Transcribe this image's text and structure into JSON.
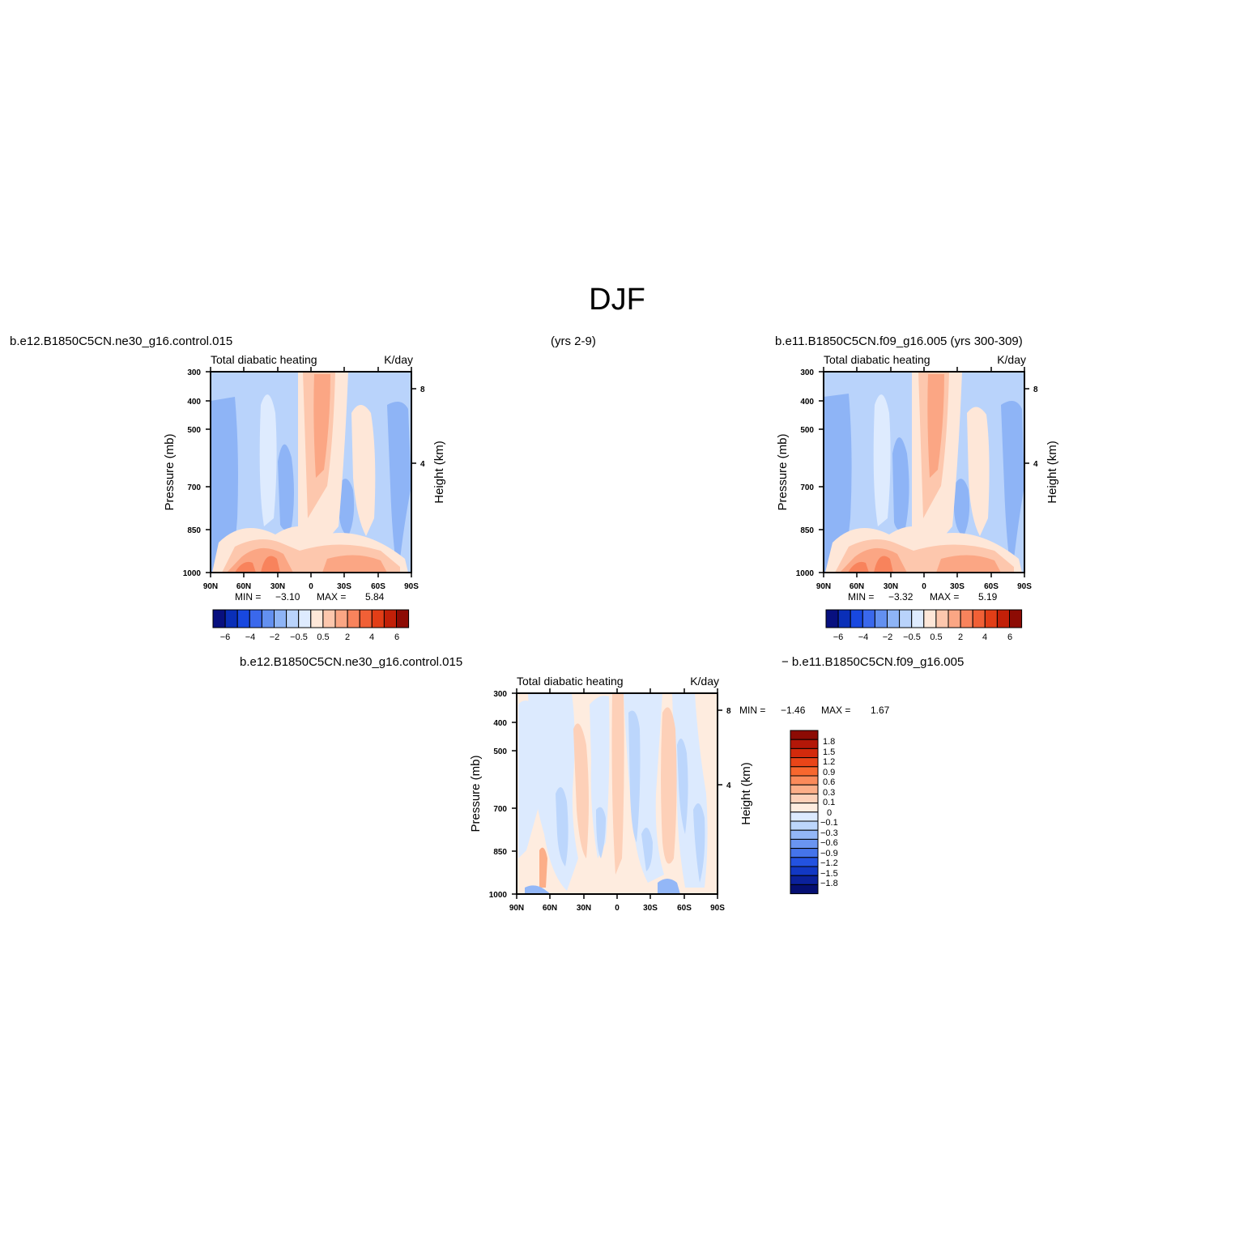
{
  "figure": {
    "title": "DJF",
    "case_left": "b.e12.B1850C5CN.ne30_g16.control.015",
    "case_left_years": "(yrs 2-9)",
    "case_right": "b.e11.B1850C5CN.f09_g16.005 (yrs 300-309)",
    "diff_left": "b.e12.B1850C5CN.ne30_g16.control.015",
    "diff_right": "− b.e11.B1850C5CN.f09_g16.005"
  },
  "colors": {
    "abs_scale": [
      "#08107f",
      "#0a2fb8",
      "#1848e0",
      "#3a68ec",
      "#6390f0",
      "#8eb4f6",
      "#b9d3fb",
      "#deebfe",
      "#fee7d8",
      "#fdc7ad",
      "#fba684",
      "#f8835c",
      "#f16036",
      "#e23e17",
      "#c22008",
      "#8d0b04"
    ],
    "diff_scale": [
      "#8d0b04",
      "#b31708",
      "#d32a0c",
      "#ea4518",
      "#f8672e",
      "#fb8a5a",
      "#fcae88",
      "#fdd0b8",
      "#feecdf",
      "#dceafe",
      "#bcd6fc",
      "#93b7f7",
      "#6a95f1",
      "#4574ea",
      "#2352e0",
      "#1238c4",
      "#0b219b",
      "#050f72"
    ]
  },
  "chart_data": [
    {
      "type": "heatmap",
      "panel": "top-left",
      "title": "Total diabatic heating",
      "units": "K/day",
      "ylabel": "Pressure (mb)",
      "ylabel_right": "Height (km)",
      "x_ticks": [
        "90N",
        "60N",
        "30N",
        "0",
        "30S",
        "60S",
        "90S"
      ],
      "y_ticks": [
        "300",
        "400",
        "500",
        "700",
        "850",
        "1000"
      ],
      "y_ticks_right": [
        "8",
        "4"
      ],
      "min_label": "MIN =",
      "min_value": "−3.10",
      "max_label": "MAX =",
      "max_value": "5.84",
      "colorbar_labels": [
        "−6",
        "−4",
        "−2",
        "−0.5",
        "0.5",
        "2",
        "4",
        "6"
      ]
    },
    {
      "type": "heatmap",
      "panel": "top-right",
      "title": "Total diabatic heating",
      "units": "K/day",
      "ylabel": "Pressure (mb)",
      "ylabel_right": "Height (km)",
      "x_ticks": [
        "90N",
        "60N",
        "30N",
        "0",
        "30S",
        "60S",
        "90S"
      ],
      "y_ticks": [
        "300",
        "400",
        "500",
        "700",
        "850",
        "1000"
      ],
      "y_ticks_right": [
        "8",
        "4"
      ],
      "min_label": "MIN =",
      "min_value": "−3.32",
      "max_label": "MAX =",
      "max_value": "5.19",
      "colorbar_labels": [
        "−6",
        "−4",
        "−2",
        "−0.5",
        "0.5",
        "2",
        "4",
        "6"
      ]
    },
    {
      "type": "heatmap",
      "panel": "bottom-difference",
      "title": "Total diabatic heating",
      "units": "K/day",
      "ylabel": "Pressure (mb)",
      "ylabel_right": "Height (km)",
      "x_ticks": [
        "90N",
        "60N",
        "30N",
        "0",
        "30S",
        "60S",
        "90S"
      ],
      "y_ticks": [
        "300",
        "400",
        "500",
        "700",
        "850",
        "1000"
      ],
      "y_ticks_right": [
        "8",
        "4"
      ],
      "min_label": "MIN =",
      "min_value": "−1.46",
      "max_label": "MAX =",
      "max_value": "1.67",
      "colorbar_labels": [
        "1.8",
        "1.5",
        "1.2",
        "0.9",
        "0.6",
        "0.3",
        "0.1",
        "0",
        "−0.1",
        "−0.3",
        "−0.6",
        "−0.9",
        "−1.2",
        "−1.5",
        "−1.8"
      ]
    }
  ]
}
